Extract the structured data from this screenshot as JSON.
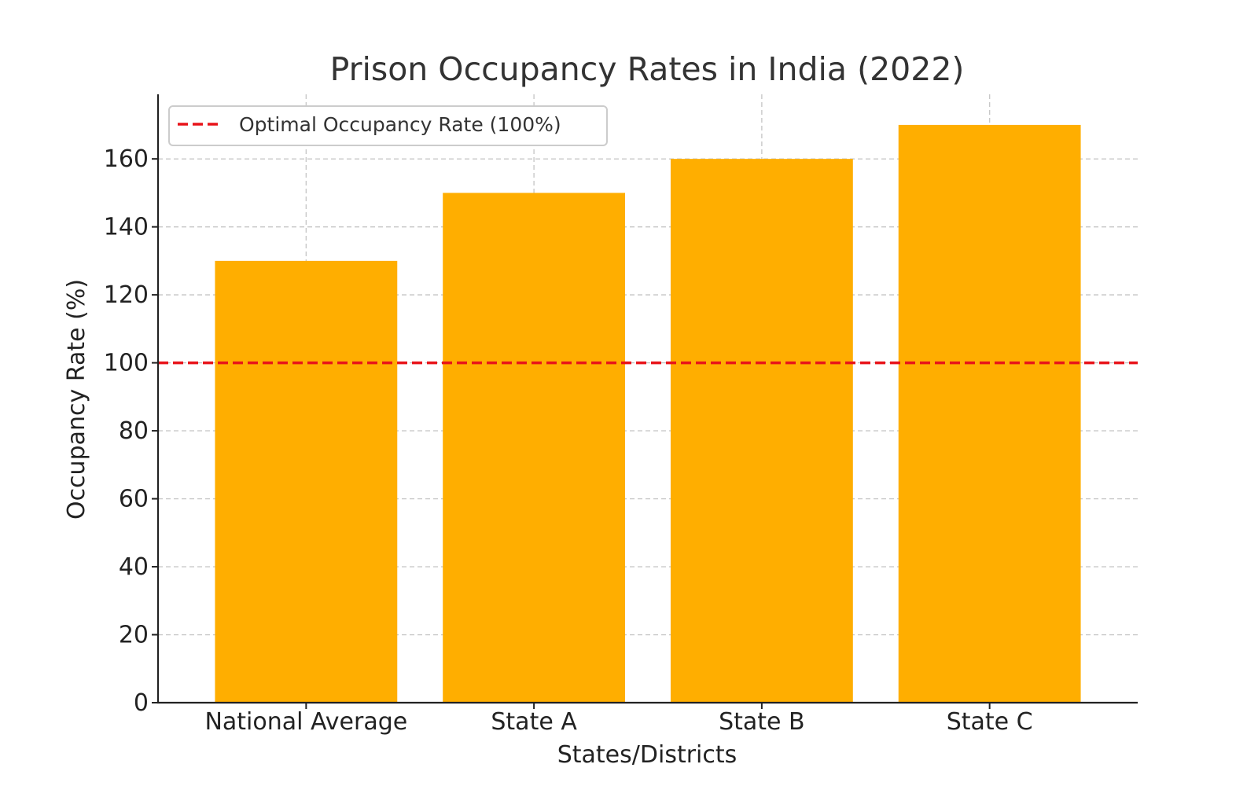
{
  "chart_data": {
    "type": "bar",
    "title": "Prison Occupancy Rates in India (2022)",
    "xlabel": "States/Districts",
    "ylabel": "Occupancy Rate (%)",
    "categories": [
      "National Average",
      "State A",
      "State B",
      "State C"
    ],
    "values": [
      130,
      150,
      160,
      170
    ],
    "bar_color": "#ffae00",
    "ylim": [
      0,
      179
    ],
    "yticks": [
      0,
      20,
      40,
      60,
      80,
      100,
      120,
      140,
      160
    ],
    "grid": true,
    "reference_line": {
      "value": 100,
      "label": "Optimal Occupancy Rate (100%)",
      "color": "#e8141a",
      "style": "dashed"
    },
    "legend": {
      "position": "top-left"
    }
  }
}
